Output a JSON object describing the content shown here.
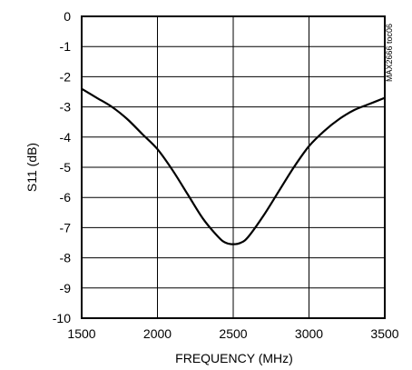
{
  "chart_data": {
    "type": "line",
    "xlabel": "FREQUENCY (MHz)",
    "ylabel": "S11 (dB)",
    "xlim": [
      1500,
      3500
    ],
    "ylim": [
      -10,
      0
    ],
    "xticks": [
      1500,
      2000,
      2500,
      3000,
      3500
    ],
    "yticks": [
      0,
      -1,
      -2,
      -3,
      -4,
      -5,
      -6,
      -7,
      -8,
      -9,
      -10
    ],
    "grid": true,
    "annotation": "MAX2666 toc06",
    "series": [
      {
        "x": [
          1500,
          1600,
          1700,
          1800,
          1900,
          2000,
          2100,
          2200,
          2300,
          2400,
          2450,
          2500,
          2550,
          2600,
          2700,
          2800,
          2900,
          3000,
          3100,
          3200,
          3300,
          3400,
          3500
        ],
        "y": [
          -2.4,
          -2.7,
          -3.0,
          -3.4,
          -3.9,
          -4.4,
          -5.1,
          -5.9,
          -6.7,
          -7.3,
          -7.5,
          -7.55,
          -7.5,
          -7.3,
          -6.6,
          -5.8,
          -5.0,
          -4.3,
          -3.8,
          -3.4,
          -3.1,
          -2.9,
          -2.7
        ],
        "color": "#000000"
      }
    ]
  }
}
